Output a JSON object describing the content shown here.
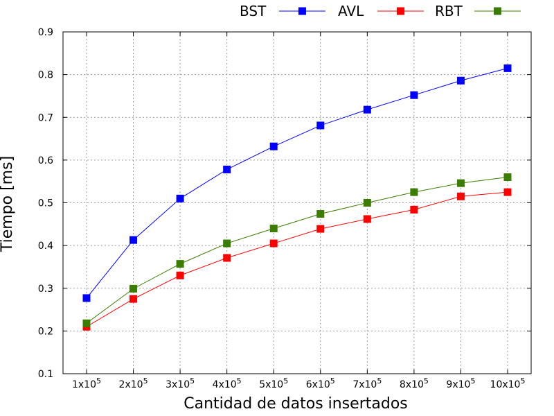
{
  "chart_data": {
    "type": "line",
    "title": "",
    "xlabel": "Cantidad de datos insertados",
    "ylabel": "Tiempo [ms]",
    "categories": [
      {
        "base": "1x10",
        "exp": "5"
      },
      {
        "base": "2x10",
        "exp": "5"
      },
      {
        "base": "3x10",
        "exp": "5"
      },
      {
        "base": "4x10",
        "exp": "5"
      },
      {
        "base": "5x10",
        "exp": "5"
      },
      {
        "base": "6x10",
        "exp": "5"
      },
      {
        "base": "7x10",
        "exp": "5"
      },
      {
        "base": "8x10",
        "exp": "5"
      },
      {
        "base": "9x10",
        "exp": "5"
      },
      {
        "base": "10x10",
        "exp": "5"
      }
    ],
    "ylim": [
      0.1,
      0.9
    ],
    "yticks": [
      "0.1",
      "0.2",
      "0.3",
      "0.4",
      "0.5",
      "0.6",
      "0.7",
      "0.8",
      "0.9"
    ],
    "grid": true,
    "legend_position": "top",
    "series": [
      {
        "name": "BST",
        "color": "#0000ff",
        "marker": "square",
        "values": [
          0.277,
          0.413,
          0.51,
          0.578,
          0.632,
          0.681,
          0.718,
          0.752,
          0.786,
          0.815
        ]
      },
      {
        "name": "AVL",
        "color": "#ff0000",
        "marker": "square",
        "values": [
          0.21,
          0.275,
          0.33,
          0.371,
          0.405,
          0.439,
          0.462,
          0.484,
          0.515,
          0.525
        ]
      },
      {
        "name": "RBT",
        "color": "#3a7d00",
        "marker": "square",
        "values": [
          0.218,
          0.299,
          0.357,
          0.405,
          0.44,
          0.474,
          0.5,
          0.525,
          0.546,
          0.56
        ]
      }
    ]
  }
}
